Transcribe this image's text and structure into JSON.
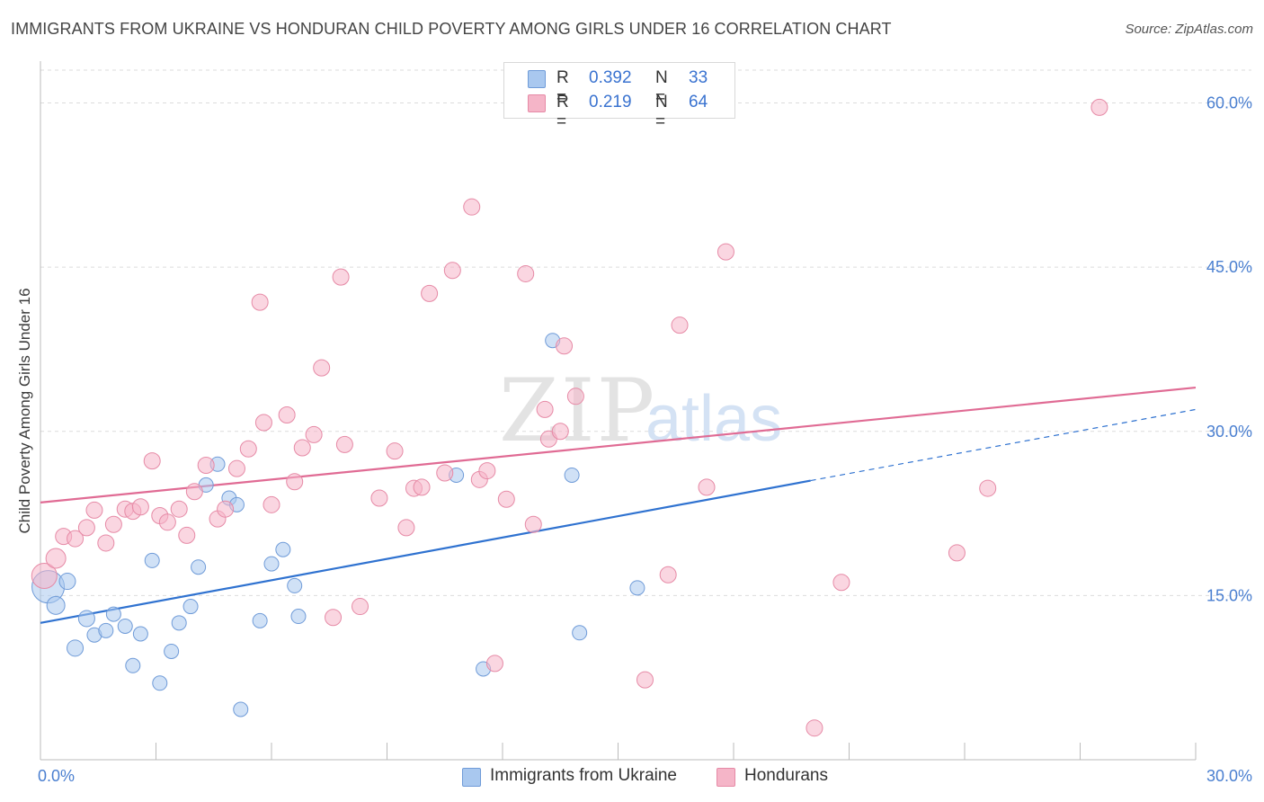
{
  "title": "IMMIGRANTS FROM UKRAINE VS HONDURAN CHILD POVERTY AMONG GIRLS UNDER 16 CORRELATION CHART",
  "source": "Source: ZipAtlas.com",
  "watermark": {
    "zip": "ZIP",
    "atlas": "atlas"
  },
  "legend_top": [
    {
      "r_label": "R =",
      "r_value": "0.392",
      "n_label": "N =",
      "n_value": "33",
      "color": "#a9c8ef"
    },
    {
      "r_label": "R =",
      "r_value": "0.219",
      "n_label": "N =",
      "n_value": "64",
      "color": "#f5b5c8"
    }
  ],
  "legend_bottom": [
    {
      "label": "Immigrants from Ukraine",
      "color": "#a9c8ef"
    },
    {
      "label": "Hondurans",
      "color": "#f5b5c8"
    }
  ],
  "chart_data": {
    "type": "scatter",
    "title": "IMMIGRANTS FROM UKRAINE VS HONDURAN CHILD POVERTY AMONG GIRLS UNDER 16 CORRELATION CHART",
    "xlabel": "",
    "ylabel": "Child Poverty Among Girls Under 16",
    "xlim": [
      0,
      30
    ],
    "ylim": [
      0,
      63
    ],
    "x_tick_labels": [
      "0.0%",
      "30.0%"
    ],
    "y_tick_labels": [
      "15.0%",
      "30.0%",
      "45.0%",
      "60.0%"
    ],
    "y_tick_values": [
      15,
      30,
      45,
      60
    ],
    "series": [
      {
        "name": "Immigrants from Ukraine",
        "color": "#a9c8ef",
        "edge": "#6f9bd8",
        "line_color": "#2f72d0",
        "trend": {
          "x0": 0,
          "y0": 12.5,
          "x1": 20,
          "y1": 25.5,
          "dashed_to_x": 30,
          "dashed_to_y": 32
        },
        "points": [
          {
            "x": 0.2,
            "y": 15.8,
            "s": 18
          },
          {
            "x": 0.4,
            "y": 14.1,
            "s": 10
          },
          {
            "x": 0.7,
            "y": 16.3,
            "s": 9
          },
          {
            "x": 0.9,
            "y": 10.2,
            "s": 9
          },
          {
            "x": 1.2,
            "y": 12.9,
            "s": 9
          },
          {
            "x": 1.4,
            "y": 11.4,
            "s": 8
          },
          {
            "x": 1.7,
            "y": 11.8,
            "s": 8
          },
          {
            "x": 1.9,
            "y": 13.3,
            "s": 8
          },
          {
            "x": 2.2,
            "y": 12.2,
            "s": 8
          },
          {
            "x": 2.4,
            "y": 8.6,
            "s": 8
          },
          {
            "x": 2.6,
            "y": 11.5,
            "s": 8
          },
          {
            "x": 2.9,
            "y": 18.2,
            "s": 8
          },
          {
            "x": 3.1,
            "y": 7.0,
            "s": 8
          },
          {
            "x": 3.4,
            "y": 9.9,
            "s": 8
          },
          {
            "x": 3.6,
            "y": 12.5,
            "s": 8
          },
          {
            "x": 3.9,
            "y": 14.0,
            "s": 8
          },
          {
            "x": 4.1,
            "y": 17.6,
            "s": 8
          },
          {
            "x": 4.3,
            "y": 25.1,
            "s": 8
          },
          {
            "x": 4.6,
            "y": 27.0,
            "s": 8
          },
          {
            "x": 4.9,
            "y": 23.9,
            "s": 8
          },
          {
            "x": 5.1,
            "y": 23.3,
            "s": 8
          },
          {
            "x": 5.2,
            "y": 4.6,
            "s": 8
          },
          {
            "x": 5.7,
            "y": 12.7,
            "s": 8
          },
          {
            "x": 6.0,
            "y": 17.9,
            "s": 8
          },
          {
            "x": 6.3,
            "y": 19.2,
            "s": 8
          },
          {
            "x": 6.6,
            "y": 15.9,
            "s": 8
          },
          {
            "x": 6.7,
            "y": 13.1,
            "s": 8
          },
          {
            "x": 10.8,
            "y": 26.0,
            "s": 8
          },
          {
            "x": 11.5,
            "y": 8.3,
            "s": 8
          },
          {
            "x": 13.3,
            "y": 38.3,
            "s": 8
          },
          {
            "x": 13.8,
            "y": 26.0,
            "s": 8
          },
          {
            "x": 14.0,
            "y": 11.6,
            "s": 8
          },
          {
            "x": 15.5,
            "y": 15.7,
            "s": 8
          }
        ]
      },
      {
        "name": "Hondurans",
        "color": "#f5b5c8",
        "edge": "#e68aa6",
        "line_color": "#e06b94",
        "trend": {
          "x0": 0,
          "y0": 23.5,
          "x1": 30,
          "y1": 34
        },
        "points": [
          {
            "x": 0.1,
            "y": 16.8,
            "s": 14
          },
          {
            "x": 0.4,
            "y": 18.4,
            "s": 11
          },
          {
            "x": 0.6,
            "y": 20.4,
            "s": 9
          },
          {
            "x": 0.9,
            "y": 20.2,
            "s": 9
          },
          {
            "x": 1.2,
            "y": 21.2,
            "s": 9
          },
          {
            "x": 1.4,
            "y": 22.8,
            "s": 9
          },
          {
            "x": 1.7,
            "y": 19.8,
            "s": 9
          },
          {
            "x": 1.9,
            "y": 21.5,
            "s": 9
          },
          {
            "x": 2.2,
            "y": 22.9,
            "s": 9
          },
          {
            "x": 2.4,
            "y": 22.7,
            "s": 9
          },
          {
            "x": 2.6,
            "y": 23.1,
            "s": 9
          },
          {
            "x": 2.9,
            "y": 27.3,
            "s": 9
          },
          {
            "x": 3.1,
            "y": 22.3,
            "s": 9
          },
          {
            "x": 3.3,
            "y": 21.7,
            "s": 9
          },
          {
            "x": 3.6,
            "y": 22.9,
            "s": 9
          },
          {
            "x": 3.8,
            "y": 20.5,
            "s": 9
          },
          {
            "x": 4.0,
            "y": 24.5,
            "s": 9
          },
          {
            "x": 4.3,
            "y": 26.9,
            "s": 9
          },
          {
            "x": 4.6,
            "y": 22.0,
            "s": 9
          },
          {
            "x": 4.8,
            "y": 22.9,
            "s": 9
          },
          {
            "x": 5.1,
            "y": 26.6,
            "s": 9
          },
          {
            "x": 5.4,
            "y": 28.4,
            "s": 9
          },
          {
            "x": 5.7,
            "y": 41.8,
            "s": 9
          },
          {
            "x": 5.8,
            "y": 30.8,
            "s": 9
          },
          {
            "x": 6.0,
            "y": 23.3,
            "s": 9
          },
          {
            "x": 6.4,
            "y": 31.5,
            "s": 9
          },
          {
            "x": 6.6,
            "y": 25.4,
            "s": 9
          },
          {
            "x": 6.8,
            "y": 28.5,
            "s": 9
          },
          {
            "x": 7.1,
            "y": 29.7,
            "s": 9
          },
          {
            "x": 7.3,
            "y": 35.8,
            "s": 9
          },
          {
            "x": 7.6,
            "y": 13.0,
            "s": 9
          },
          {
            "x": 7.8,
            "y": 44.1,
            "s": 9
          },
          {
            "x": 7.9,
            "y": 28.8,
            "s": 9
          },
          {
            "x": 8.3,
            "y": 14.0,
            "s": 9
          },
          {
            "x": 8.8,
            "y": 23.9,
            "s": 9
          },
          {
            "x": 9.2,
            "y": 28.2,
            "s": 9
          },
          {
            "x": 9.5,
            "y": 21.2,
            "s": 9
          },
          {
            "x": 9.7,
            "y": 24.8,
            "s": 9
          },
          {
            "x": 9.9,
            "y": 24.9,
            "s": 9
          },
          {
            "x": 10.1,
            "y": 42.6,
            "s": 9
          },
          {
            "x": 10.5,
            "y": 26.2,
            "s": 9
          },
          {
            "x": 10.7,
            "y": 44.7,
            "s": 9
          },
          {
            "x": 11.2,
            "y": 50.5,
            "s": 9
          },
          {
            "x": 11.4,
            "y": 25.6,
            "s": 9
          },
          {
            "x": 11.6,
            "y": 26.4,
            "s": 9
          },
          {
            "x": 11.8,
            "y": 8.8,
            "s": 9
          },
          {
            "x": 12.1,
            "y": 23.8,
            "s": 9
          },
          {
            "x": 12.6,
            "y": 44.4,
            "s": 9
          },
          {
            "x": 12.8,
            "y": 21.5,
            "s": 9
          },
          {
            "x": 13.1,
            "y": 32.0,
            "s": 9
          },
          {
            "x": 13.2,
            "y": 29.3,
            "s": 9
          },
          {
            "x": 13.5,
            "y": 30.0,
            "s": 9
          },
          {
            "x": 13.6,
            "y": 37.8,
            "s": 9
          },
          {
            "x": 13.9,
            "y": 33.2,
            "s": 9
          },
          {
            "x": 15.7,
            "y": 7.3,
            "s": 9
          },
          {
            "x": 16.3,
            "y": 16.9,
            "s": 9
          },
          {
            "x": 16.6,
            "y": 39.7,
            "s": 9
          },
          {
            "x": 17.3,
            "y": 24.9,
            "s": 9
          },
          {
            "x": 17.8,
            "y": 46.4,
            "s": 9
          },
          {
            "x": 20.1,
            "y": 2.9,
            "s": 9
          },
          {
            "x": 20.8,
            "y": 16.2,
            "s": 9
          },
          {
            "x": 23.8,
            "y": 18.9,
            "s": 9
          },
          {
            "x": 24.6,
            "y": 24.8,
            "s": 9
          },
          {
            "x": 27.5,
            "y": 59.6,
            "s": 9
          }
        ]
      }
    ]
  }
}
